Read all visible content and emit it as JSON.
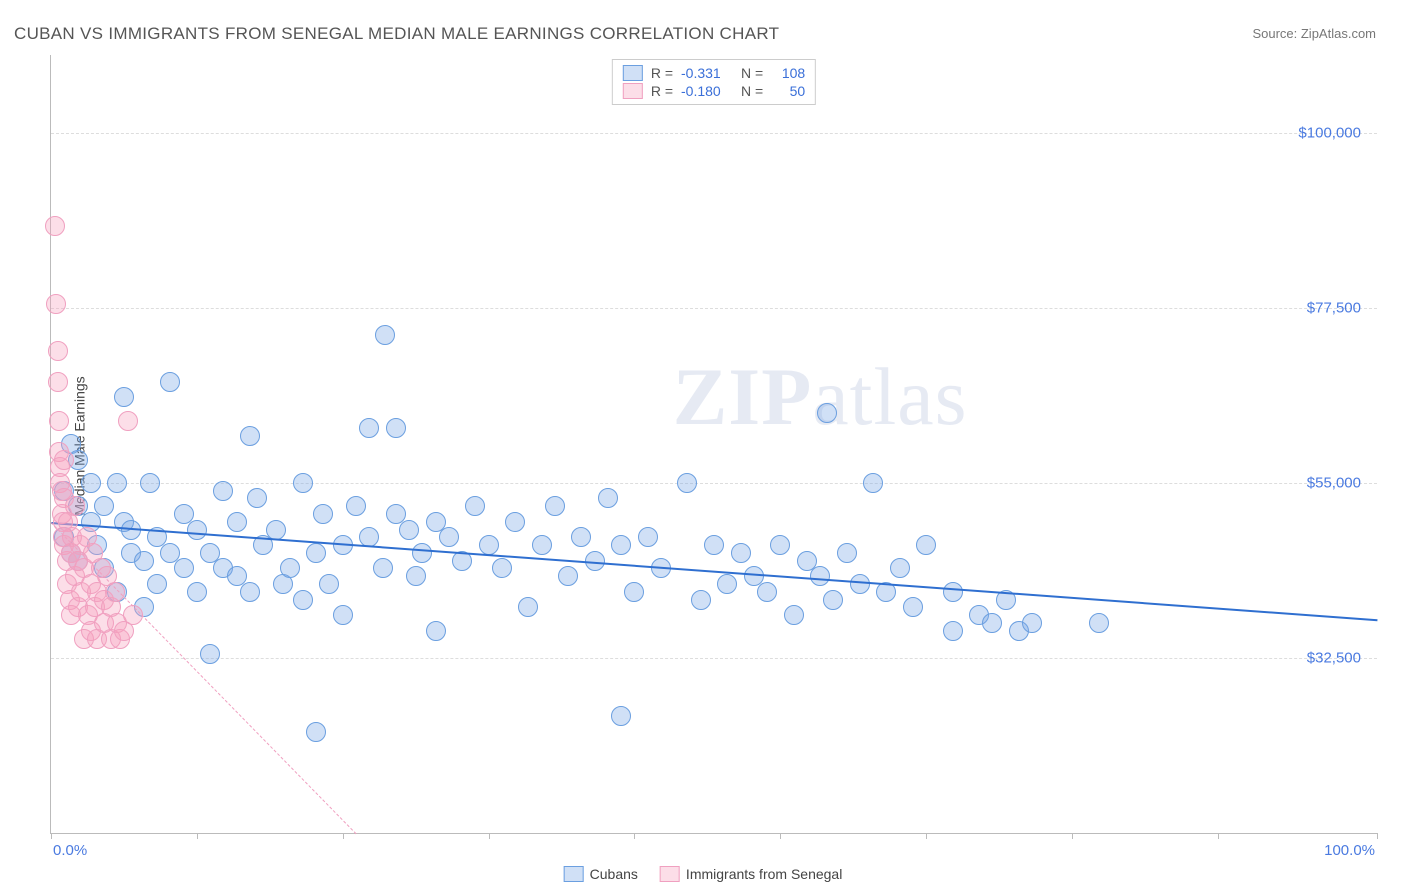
{
  "title": "CUBAN VS IMMIGRANTS FROM SENEGAL MEDIAN MALE EARNINGS CORRELATION CHART",
  "source_label": "Source: ZipAtlas.com",
  "watermark": {
    "bold": "ZIP",
    "rest": "atlas"
  },
  "chart": {
    "type": "scatter",
    "ylabel": "Median Male Earnings",
    "xlim": [
      0,
      100
    ],
    "ylim": [
      10000,
      110000
    ],
    "y_ticks": [
      {
        "v": 32500,
        "label": "$32,500"
      },
      {
        "v": 55000,
        "label": "$55,000"
      },
      {
        "v": 77500,
        "label": "$77,500"
      },
      {
        "v": 100000,
        "label": "$100,000"
      }
    ],
    "x_tick_positions": [
      0,
      11,
      22,
      33,
      44,
      55,
      66,
      77,
      88,
      100
    ],
    "x_labels": [
      {
        "v": 0,
        "label": "0.0%",
        "align": "left"
      },
      {
        "v": 100,
        "label": "100.0%",
        "align": "right"
      }
    ],
    "grid_color": "#dddddd",
    "axis_color": "#bbbbbb",
    "background_color": "#ffffff",
    "marker_radius": 9,
    "series": [
      {
        "name": "Cubans",
        "fill": "rgba(120,165,230,0.35)",
        "stroke": "#6b9fe0",
        "trend": {
          "x1": 0,
          "y1": 50000,
          "x2": 100,
          "y2": 37500,
          "color": "#2f6fd0",
          "width": 2.2,
          "dash": "solid"
        },
        "R": "-0.331",
        "N": "108",
        "points": [
          [
            1,
            48000
          ],
          [
            1,
            54000
          ],
          [
            1.5,
            60000
          ],
          [
            1.5,
            46000
          ],
          [
            2,
            58000
          ],
          [
            2,
            52000
          ],
          [
            2,
            45000
          ],
          [
            3,
            55000
          ],
          [
            3,
            50000
          ],
          [
            3.5,
            47000
          ],
          [
            4,
            44000
          ],
          [
            4,
            52000
          ],
          [
            5,
            41000
          ],
          [
            5,
            55000
          ],
          [
            5.5,
            66000
          ],
          [
            5.5,
            50000
          ],
          [
            6,
            49000
          ],
          [
            6,
            46000
          ],
          [
            7,
            39000
          ],
          [
            7,
            45000
          ],
          [
            7.5,
            55000
          ],
          [
            8,
            48000
          ],
          [
            8,
            42000
          ],
          [
            9,
            68000
          ],
          [
            9,
            46000
          ],
          [
            10,
            51000
          ],
          [
            10,
            44000
          ],
          [
            11,
            41000
          ],
          [
            11,
            49000
          ],
          [
            12,
            33000
          ],
          [
            12,
            46000
          ],
          [
            13,
            54000
          ],
          [
            13,
            44000
          ],
          [
            14,
            43000
          ],
          [
            14,
            50000
          ],
          [
            15,
            61000
          ],
          [
            15,
            41000
          ],
          [
            15.5,
            53000
          ],
          [
            16,
            47000
          ],
          [
            17,
            49000
          ],
          [
            17.5,
            42000
          ],
          [
            18,
            44000
          ],
          [
            19,
            40000
          ],
          [
            19,
            55000
          ],
          [
            20,
            23000
          ],
          [
            20,
            46000
          ],
          [
            20.5,
            51000
          ],
          [
            21,
            42000
          ],
          [
            22,
            38000
          ],
          [
            22,
            47000
          ],
          [
            23,
            52000
          ],
          [
            24,
            48000
          ],
          [
            24,
            62000
          ],
          [
            25,
            44000
          ],
          [
            25.2,
            74000
          ],
          [
            26,
            62000
          ],
          [
            26,
            51000
          ],
          [
            27,
            49000
          ],
          [
            27.5,
            43000
          ],
          [
            28,
            46000
          ],
          [
            29,
            36000
          ],
          [
            29,
            50000
          ],
          [
            30,
            48000
          ],
          [
            31,
            45000
          ],
          [
            32,
            52000
          ],
          [
            33,
            47000
          ],
          [
            34,
            44000
          ],
          [
            35,
            50000
          ],
          [
            36,
            39000
          ],
          [
            37,
            47000
          ],
          [
            38,
            52000
          ],
          [
            39,
            43000
          ],
          [
            40,
            48000
          ],
          [
            41,
            45000
          ],
          [
            42,
            53000
          ],
          [
            43,
            25000
          ],
          [
            43,
            47000
          ],
          [
            44,
            41000
          ],
          [
            45,
            48000
          ],
          [
            46,
            44000
          ],
          [
            48,
            55000
          ],
          [
            49,
            40000
          ],
          [
            50,
            47000
          ],
          [
            51,
            42000
          ],
          [
            52,
            46000
          ],
          [
            53,
            43000
          ],
          [
            54,
            41000
          ],
          [
            55,
            47000
          ],
          [
            56,
            38000
          ],
          [
            57,
            45000
          ],
          [
            58,
            43000
          ],
          [
            58.5,
            64000
          ],
          [
            59,
            40000
          ],
          [
            60,
            46000
          ],
          [
            61,
            42000
          ],
          [
            62,
            55000
          ],
          [
            63,
            41000
          ],
          [
            64,
            44000
          ],
          [
            65,
            39000
          ],
          [
            66,
            47000
          ],
          [
            68,
            41000
          ],
          [
            68,
            36000
          ],
          [
            70,
            38000
          ],
          [
            71,
            37000
          ],
          [
            72,
            40000
          ],
          [
            73,
            36000
          ],
          [
            74,
            37000
          ],
          [
            79,
            37000
          ]
        ]
      },
      {
        "name": "Immigrants from Senegal",
        "fill": "rgba(245,160,190,0.35)",
        "stroke": "#f0a0c0",
        "trend": {
          "x1": 0,
          "y1": 50000,
          "x2": 23,
          "y2": 10000,
          "color": "#f0a0c0",
          "width": 1.2,
          "dash": "dashed"
        },
        "R": "-0.180",
        "N": "50",
        "points": [
          [
            0.3,
            88000
          ],
          [
            0.4,
            78000
          ],
          [
            0.5,
            72000
          ],
          [
            0.5,
            68000
          ],
          [
            0.6,
            63000
          ],
          [
            0.6,
            59000
          ],
          [
            0.7,
            57000
          ],
          [
            0.7,
            55000
          ],
          [
            0.8,
            54000
          ],
          [
            0.8,
            51000
          ],
          [
            0.9,
            50000
          ],
          [
            0.9,
            48000
          ],
          [
            1,
            47000
          ],
          [
            1,
            53000
          ],
          [
            1,
            58000
          ],
          [
            1.2,
            45000
          ],
          [
            1.2,
            42000
          ],
          [
            1.3,
            50000
          ],
          [
            1.4,
            40000
          ],
          [
            1.5,
            46000
          ],
          [
            1.5,
            38000
          ],
          [
            1.6,
            48000
          ],
          [
            1.8,
            43000
          ],
          [
            1.8,
            52000
          ],
          [
            2,
            45000
          ],
          [
            2,
            39000
          ],
          [
            2.2,
            47000
          ],
          [
            2.3,
            41000
          ],
          [
            2.5,
            35000
          ],
          [
            2.5,
            44000
          ],
          [
            2.7,
            48000
          ],
          [
            2.8,
            38000
          ],
          [
            3,
            36000
          ],
          [
            3,
            42000
          ],
          [
            3.2,
            46000
          ],
          [
            3.3,
            39000
          ],
          [
            3.5,
            35000
          ],
          [
            3.5,
            41000
          ],
          [
            3.8,
            44000
          ],
          [
            4,
            37000
          ],
          [
            4,
            40000
          ],
          [
            4.2,
            43000
          ],
          [
            4.5,
            35000
          ],
          [
            4.5,
            39000
          ],
          [
            4.8,
            41000
          ],
          [
            5,
            37000
          ],
          [
            5.2,
            35000
          ],
          [
            5.5,
            36000
          ],
          [
            5.8,
            63000
          ],
          [
            6.2,
            38000
          ]
        ]
      }
    ],
    "stats_legend": {
      "R_label": "R =",
      "N_label": "N ="
    },
    "bottom_legend": true
  }
}
